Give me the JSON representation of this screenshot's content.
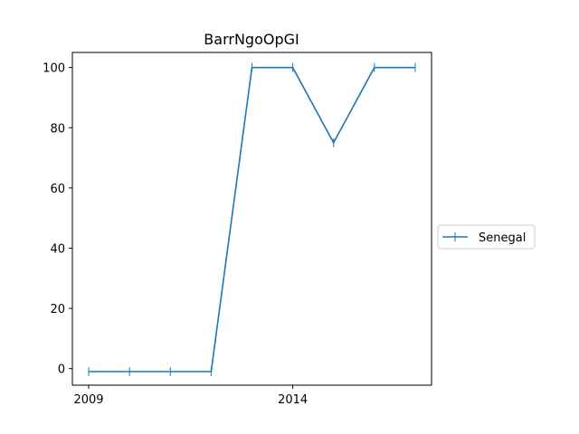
{
  "chart_data": {
    "type": "line",
    "title": "BarrNgoOpGI",
    "xlabel": "",
    "ylabel": "",
    "x": [
      2009,
      2010,
      2011,
      2012,
      2013,
      2014,
      2015,
      2016,
      2017
    ],
    "series": [
      {
        "name": "Senegal",
        "color": "#1f77b4",
        "marker": "vertical-line",
        "values": [
          -1,
          -1,
          -1,
          -1,
          100,
          100,
          75,
          100,
          100
        ]
      }
    ],
    "xlim": [
      2008.6,
      2017.4
    ],
    "ylim": [
      -5.5,
      105
    ],
    "xticks": [
      2009,
      2014
    ],
    "yticks": [
      0,
      20,
      40,
      60,
      80,
      100
    ],
    "grid": false,
    "legend_position": "right"
  }
}
